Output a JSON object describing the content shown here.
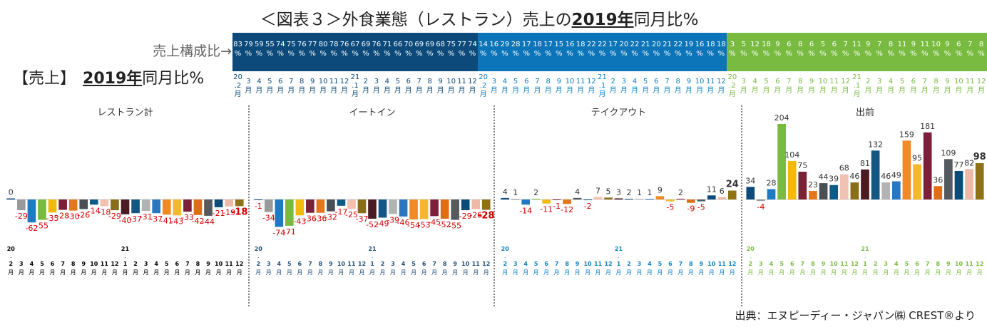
{
  "header": {
    "title_prefix": "＜図表３＞外食業態（レストラン）売上の",
    "title_bold": "2019年",
    "title_suffix": "同月比%",
    "share_label": "売上構成比→",
    "sales_label": "【売上】",
    "sales_bold": "2019年",
    "sales_suffix": "同月比%",
    "source": "出典：エヌピーディー・ジャパン㈱ CREST®より"
  },
  "colors": {
    "band_restaurant": "#0b4a7a",
    "band_eatin": "#0e6aaa",
    "band_takeout": "#0c80c4",
    "band_delivery": "#79bb40",
    "neg_label": "#d40000",
    "pos_label": "#333333",
    "bar_palette": [
      "#0b4a7a",
      "#9a9a9a",
      "#1f7ac4",
      "#79bb40",
      "#f2b90f",
      "#7b2135",
      "#e3771b",
      "#4a4f56",
      "#0f5a86",
      "#f1c2b2",
      "#8a6d1a",
      "#4b1a22",
      "#135684",
      "#b3b3b3",
      "#2a77c0",
      "#f08a27",
      "#f5b72e",
      "#7d1f3a",
      "#e06d12",
      "#555a60",
      "#0a4b79",
      "#efb9a8",
      "#8f7216"
    ]
  },
  "months": [
    "20.2",
    "3",
    "4",
    "5",
    "6",
    "7",
    "8",
    "9",
    "10",
    "11",
    "12",
    "21.1",
    "2",
    "3",
    "4",
    "5",
    "6",
    "7",
    "8",
    "9",
    "10",
    "11",
    "12"
  ],
  "month_header": {
    "suffix": "月",
    "dot": "."
  },
  "chart_data": [
    {
      "type": "bar",
      "title": "レストラン計",
      "categories": [
        "20.2",
        "3",
        "4",
        "5",
        "6",
        "7",
        "8",
        "9",
        "10",
        "11",
        "12",
        "21.1",
        "2",
        "3",
        "4",
        "5",
        "6",
        "7",
        "8",
        "9",
        "10",
        "11",
        "12"
      ],
      "values": [
        0,
        -29,
        -62,
        -55,
        -35,
        -28,
        -30,
        -26,
        -14,
        -18,
        -29,
        -40,
        -37,
        -31,
        -37,
        -41,
        -43,
        -33,
        -42,
        -44,
        -21,
        -19,
        -18
      ],
      "share": [
        83,
        79,
        59,
        55,
        74,
        75,
        76,
        77,
        80,
        78,
        76,
        67,
        69,
        76,
        71,
        66,
        70,
        69,
        69,
        68,
        75,
        77,
        74
      ]
    },
    {
      "type": "bar",
      "title": "イートイン",
      "categories": [
        "20.2",
        "3",
        "4",
        "5",
        "6",
        "7",
        "8",
        "9",
        "10",
        "11",
        "12",
        "21.1",
        "2",
        "3",
        "4",
        "5",
        "6",
        "7",
        "8",
        "9",
        "10",
        "11",
        "12"
      ],
      "values": [
        -1,
        -34,
        -74,
        -71,
        -43,
        -36,
        -36,
        -32,
        -17,
        -25,
        -37,
        -52,
        -49,
        -39,
        -46,
        -54,
        -53,
        -45,
        -52,
        -55,
        -29,
        -26,
        -28
      ]
    },
    {
      "type": "bar",
      "title": "テイクアウト",
      "categories": [
        "20.2",
        "3",
        "4",
        "5",
        "6",
        "7",
        "8",
        "9",
        "10",
        "11",
        "12",
        "21.1",
        "2",
        "3",
        "4",
        "5",
        "6",
        "7",
        "8",
        "9",
        "10",
        "11",
        "12"
      ],
      "values": [
        4,
        1,
        -14,
        2,
        -11,
        -1,
        -12,
        4,
        -2,
        7,
        5,
        3,
        2,
        1,
        1,
        9,
        -5,
        2,
        -9,
        -5,
        11,
        6,
        24
      ],
      "share": [
        14,
        16,
        29,
        28,
        17,
        18,
        17,
        15,
        16,
        18,
        22,
        22,
        17,
        20,
        22,
        21,
        20,
        21,
        22,
        19,
        16,
        18,
        18
      ]
    },
    {
      "type": "bar",
      "title": "出前",
      "categories": [
        "20.2",
        "3",
        "4",
        "5",
        "6",
        "7",
        "8",
        "9",
        "10",
        "11",
        "12",
        "21.1",
        "2",
        "3",
        "4",
        "5",
        "6",
        "7",
        "8",
        "9",
        "10",
        "11",
        "12"
      ],
      "values": [
        34,
        -4,
        28,
        204,
        104,
        75,
        23,
        44,
        39,
        68,
        46,
        81,
        132,
        46,
        49,
        159,
        95,
        181,
        36,
        109,
        77,
        82,
        98
      ],
      "share": [
        3,
        5,
        12,
        18,
        9,
        6,
        8,
        6,
        5,
        6,
        7,
        11,
        9,
        7,
        8,
        11,
        9,
        11,
        10,
        9,
        6,
        7,
        8
      ]
    }
  ]
}
